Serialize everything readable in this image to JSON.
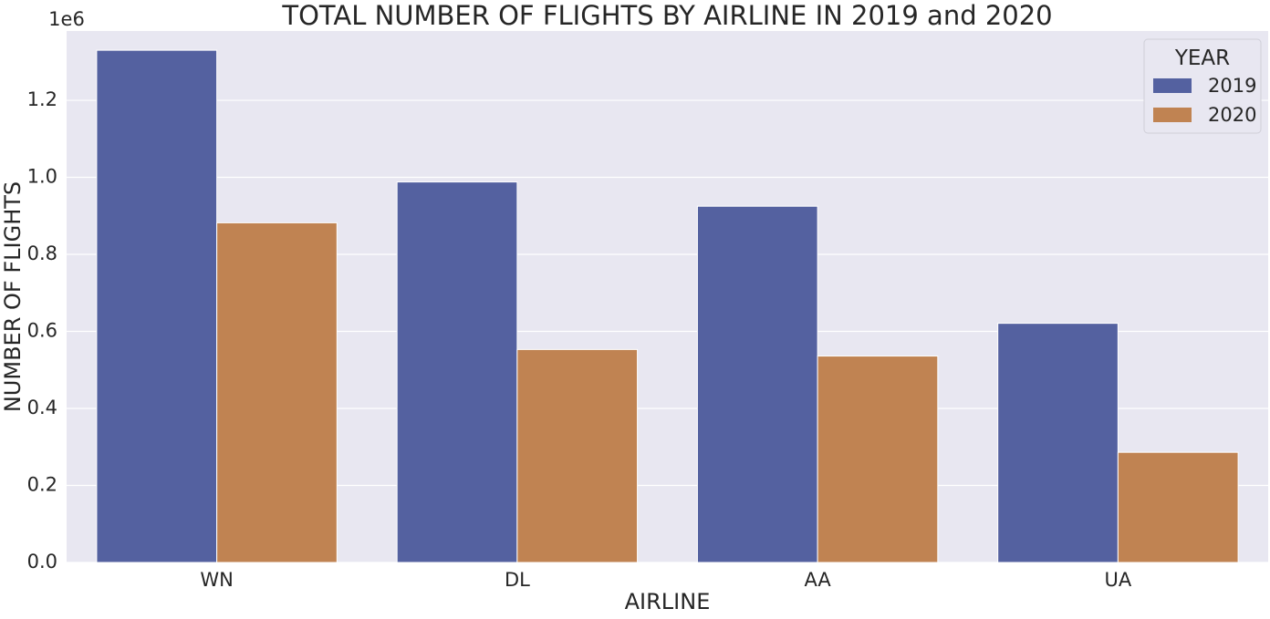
{
  "chart_data": {
    "type": "bar",
    "title": "TOTAL NUMBER OF FLIGHTS BY AIRLINE IN 2019 and 2020",
    "xlabel": "AIRLINE",
    "ylabel": "NUMBER OF FLIGHTS",
    "offset_label": "1e6",
    "categories": [
      "WN",
      "DL",
      "AA",
      "UA"
    ],
    "series": [
      {
        "name": "2019",
        "color": "#5461a0",
        "values": [
          1330000,
          988000,
          925000,
          621000
        ]
      },
      {
        "name": "2020",
        "color": "#c08352",
        "values": [
          882000,
          553000,
          536000,
          286000
        ]
      }
    ],
    "ylim": [
      0,
      1380000
    ],
    "yticks": [
      0,
      200000,
      400000,
      600000,
      800000,
      1000000,
      1200000
    ],
    "ytick_labels": [
      "0.0",
      "0.2",
      "0.4",
      "0.6",
      "0.8",
      "1.0",
      "1.2"
    ],
    "legend": {
      "title": "YEAR",
      "entries": [
        "2019",
        "2020"
      ],
      "placement": "top-right"
    },
    "grid": true,
    "background_color": "#e8e7f1",
    "grid_color": "#ffffff"
  }
}
